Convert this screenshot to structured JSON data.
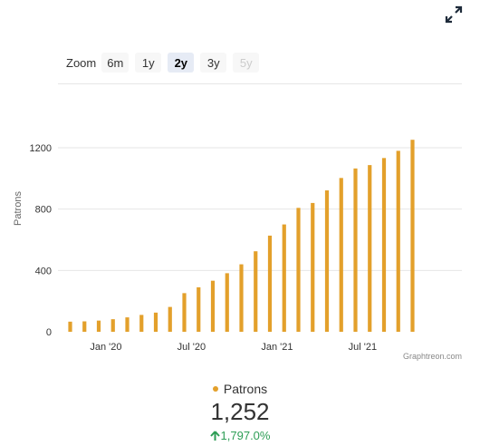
{
  "zoom": {
    "label": "Zoom",
    "options": [
      {
        "label": "6m",
        "state": "normal"
      },
      {
        "label": "1y",
        "state": "normal"
      },
      {
        "label": "2y",
        "state": "selected"
      },
      {
        "label": "3y",
        "state": "normal"
      },
      {
        "label": "5y",
        "state": "disabled"
      }
    ]
  },
  "credit": "Graphtreon.com",
  "summary": {
    "legend_label": "Patrons",
    "total": "1,252",
    "change": "1,797.0%"
  },
  "colors": {
    "bar": "#e3a02b",
    "change_positive": "#2e9e56"
  },
  "chart_data": {
    "type": "bar",
    "ylabel": "Patrons",
    "ylim": [
      0,
      1250
    ],
    "yticks": [
      "0",
      "400",
      "800",
      "1200"
    ],
    "xticks": [
      "Jan '20",
      "Jul '20",
      "Jan '21",
      "Jul '21"
    ],
    "grid": true,
    "series": [
      {
        "name": "Patrons",
        "values": [
          66,
          68,
          73,
          82,
          94,
          110,
          125,
          162,
          252,
          290,
          333,
          382,
          440,
          525,
          627,
          700,
          808,
          840,
          922,
          1003,
          1065,
          1087,
          1133,
          1180,
          1252
        ]
      }
    ]
  }
}
